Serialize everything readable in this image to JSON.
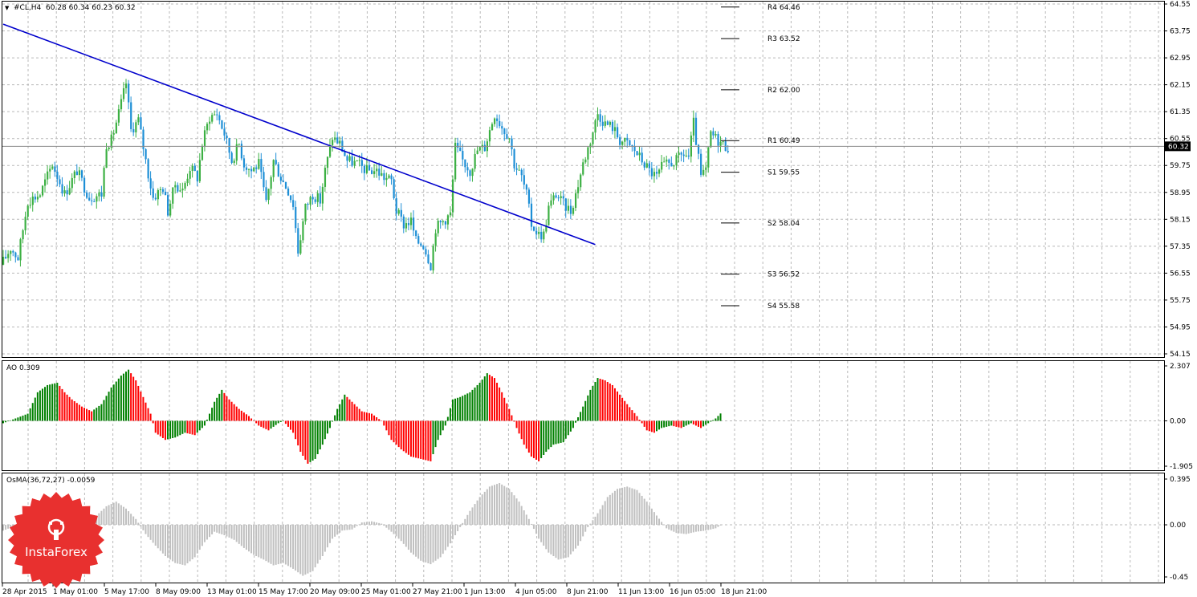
{
  "chart_data": [
    {
      "type": "candlestick",
      "title": "#CL,H4",
      "ohlc_label": "60.28 60.34 60.23 60.32",
      "current_price": 60.32,
      "current_price_label": "60.32",
      "ylim": [
        54.15,
        64.55
      ],
      "y_ticks": [
        "64.55",
        "63.75",
        "62.95",
        "62.15",
        "61.35",
        "60.55",
        "59.75",
        "58.95",
        "58.15",
        "57.35",
        "56.55",
        "55.75",
        "54.95",
        "54.15"
      ],
      "x_ticks": [
        "28 Apr 2015",
        "1 May 01:00",
        "5 May 17:00",
        "8 May 09:00",
        "13 May 01:00",
        "15 May 17:00",
        "20 May 09:00",
        "25 May 01:00",
        "27 May 21:00",
        "1 Jun 13:00",
        "4 Jun 05:00",
        "8 Jun 21:00",
        "11 Jun 13:00",
        "16 Jun 05:00",
        "18 Jun 21:00"
      ],
      "up_color": "#3cb043",
      "down_color": "#1e8fd6",
      "trendline_color": "#0000cc",
      "pivot_levels": [
        {
          "label": "R4 64.46",
          "value": 64.46
        },
        {
          "label": "R3 63.52",
          "value": 63.52
        },
        {
          "label": "R2 62.00",
          "value": 62.0
        },
        {
          "label": "R1 60.49",
          "value": 60.49
        },
        {
          "label": "S1 59.55",
          "value": 59.55
        },
        {
          "label": "S2 58.04",
          "value": 58.04
        },
        {
          "label": "S3 56.52",
          "value": 56.52
        },
        {
          "label": "S4 55.58",
          "value": 55.58
        }
      ],
      "trendline": {
        "from_bar": 0,
        "from_value": 63.95,
        "to_bar": 241,
        "to_value": 57.4
      },
      "close_path": [
        [
          0,
          56.9
        ],
        [
          3,
          57.3
        ],
        [
          6,
          57.0
        ],
        [
          10,
          58.7
        ],
        [
          15,
          58.9
        ],
        [
          20,
          59.8
        ],
        [
          25,
          58.9
        ],
        [
          30,
          59.6
        ],
        [
          35,
          58.8
        ],
        [
          40,
          58.9
        ],
        [
          42,
          60.4
        ],
        [
          44,
          60.5
        ],
        [
          47,
          61.3
        ],
        [
          50,
          62.2
        ],
        [
          52,
          60.8
        ],
        [
          55,
          61.1
        ],
        [
          57,
          60.3
        ],
        [
          59,
          59.5
        ],
        [
          61,
          58.8
        ],
        [
          65,
          59.1
        ],
        [
          67,
          58.4
        ],
        [
          70,
          59.2
        ],
        [
          73,
          59.0
        ],
        [
          76,
          59.7
        ],
        [
          79,
          59.4
        ],
        [
          81,
          60.4
        ],
        [
          84,
          61.2
        ],
        [
          87,
          61.3
        ],
        [
          90,
          60.7
        ],
        [
          93,
          59.9
        ],
        [
          96,
          60.4
        ],
        [
          98,
          59.8
        ],
        [
          101,
          59.6
        ],
        [
          104,
          59.8
        ],
        [
          107,
          58.6
        ],
        [
          110,
          59.9
        ],
        [
          113,
          59.4
        ],
        [
          116,
          59.0
        ],
        [
          118,
          58.6
        ],
        [
          120,
          57.2
        ],
        [
          123,
          58.5
        ],
        [
          126,
          58.9
        ],
        [
          129,
          58.7
        ],
        [
          131,
          59.6
        ],
        [
          134,
          60.6
        ],
        [
          137,
          60.4
        ],
        [
          140,
          59.9
        ],
        [
          144,
          59.8
        ],
        [
          148,
          59.6
        ],
        [
          152,
          59.6
        ],
        [
          155,
          59.4
        ],
        [
          158,
          59.3
        ],
        [
          160,
          58.4
        ],
        [
          163,
          58.0
        ],
        [
          166,
          58.1
        ],
        [
          168,
          57.5
        ],
        [
          171,
          57.4
        ],
        [
          174,
          56.8
        ],
        [
          176,
          57.9
        ],
        [
          179,
          58.1
        ],
        [
          182,
          58.3
        ],
        [
          184,
          60.3
        ],
        [
          187,
          59.9
        ],
        [
          190,
          59.6
        ],
        [
          193,
          60.2
        ],
        [
          196,
          60.3
        ],
        [
          198,
          60.8
        ],
        [
          200,
          61.3
        ],
        [
          203,
          60.9
        ],
        [
          206,
          60.6
        ],
        [
          208,
          59.8
        ],
        [
          211,
          59.4
        ],
        [
          213,
          58.9
        ],
        [
          215,
          58.0
        ],
        [
          218,
          57.7
        ],
        [
          220,
          57.7
        ],
        [
          222,
          58.5
        ],
        [
          225,
          58.9
        ],
        [
          228,
          58.6
        ],
        [
          231,
          58.4
        ],
        [
          233,
          58.9
        ],
        [
          236,
          59.8
        ],
        [
          239,
          60.5
        ],
        [
          242,
          61.3
        ],
        [
          245,
          61.0
        ],
        [
          248,
          60.9
        ],
        [
          251,
          60.5
        ],
        [
          254,
          60.4
        ],
        [
          257,
          60.2
        ],
        [
          260,
          59.9
        ],
        [
          263,
          59.6
        ],
        [
          266,
          59.4
        ],
        [
          268,
          59.7
        ],
        [
          271,
          59.8
        ],
        [
          274,
          59.9
        ],
        [
          277,
          60.1
        ],
        [
          279,
          60.0
        ],
        [
          281,
          61.0
        ],
        [
          284,
          59.4
        ],
        [
          286,
          59.6
        ],
        [
          288,
          60.7
        ],
        [
          291,
          60.5
        ],
        [
          294,
          60.32
        ]
      ],
      "bar_count": 296
    },
    {
      "type": "bar",
      "title": "AO 0.309",
      "ylim": [
        -1.905,
        2.307
      ],
      "y_ticks": [
        "2.307",
        "0.00",
        "-1.905"
      ],
      "up_color": "#008000",
      "down_color": "#ff0000",
      "path": [
        [
          0,
          -0.1
        ],
        [
          5,
          0.1
        ],
        [
          10,
          0.3
        ],
        [
          14,
          1.2
        ],
        [
          18,
          1.5
        ],
        [
          22,
          1.6
        ],
        [
          25,
          1.2
        ],
        [
          28,
          0.9
        ],
        [
          32,
          0.6
        ],
        [
          36,
          0.4
        ],
        [
          40,
          0.7
        ],
        [
          44,
          1.4
        ],
        [
          48,
          1.9
        ],
        [
          51,
          2.15
        ],
        [
          54,
          1.7
        ],
        [
          57,
          1.0
        ],
        [
          60,
          0.3
        ],
        [
          62,
          -0.5
        ],
        [
          66,
          -0.8
        ],
        [
          70,
          -0.7
        ],
        [
          74,
          -0.5
        ],
        [
          78,
          -0.6
        ],
        [
          82,
          -0.2
        ],
        [
          86,
          0.8
        ],
        [
          89,
          1.3
        ],
        [
          92,
          0.9
        ],
        [
          96,
          0.5
        ],
        [
          100,
          0.2
        ],
        [
          104,
          -0.2
        ],
        [
          108,
          -0.4
        ],
        [
          112,
          -0.1
        ],
        [
          114,
          0.0
        ],
        [
          118,
          -0.5
        ],
        [
          121,
          -1.3
        ],
        [
          124,
          -1.8
        ],
        [
          127,
          -1.6
        ],
        [
          130,
          -1.0
        ],
        [
          133,
          -0.3
        ],
        [
          136,
          0.5
        ],
        [
          139,
          1.1
        ],
        [
          142,
          0.8
        ],
        [
          146,
          0.4
        ],
        [
          150,
          0.3
        ],
        [
          154,
          0.0
        ],
        [
          158,
          -0.8
        ],
        [
          162,
          -1.2
        ],
        [
          166,
          -1.5
        ],
        [
          170,
          -1.6
        ],
        [
          174,
          -1.7
        ],
        [
          177,
          -0.8
        ],
        [
          180,
          -0.2
        ],
        [
          183,
          0.9
        ],
        [
          186,
          1.0
        ],
        [
          190,
          1.2
        ],
        [
          194,
          1.6
        ],
        [
          197,
          2.0
        ],
        [
          200,
          1.8
        ],
        [
          203,
          1.2
        ],
        [
          206,
          0.5
        ],
        [
          209,
          -0.3
        ],
        [
          212,
          -1.0
        ],
        [
          215,
          -1.5
        ],
        [
          218,
          -1.7
        ],
        [
          221,
          -1.3
        ],
        [
          224,
          -1.0
        ],
        [
          228,
          -0.9
        ],
        [
          232,
          -0.3
        ],
        [
          236,
          0.6
        ],
        [
          239,
          1.3
        ],
        [
          242,
          1.8
        ],
        [
          245,
          1.7
        ],
        [
          248,
          1.5
        ],
        [
          251,
          1.1
        ],
        [
          254,
          0.7
        ],
        [
          258,
          0.2
        ],
        [
          262,
          -0.4
        ],
        [
          265,
          -0.5
        ],
        [
          268,
          -0.3
        ],
        [
          272,
          -0.2
        ],
        [
          276,
          -0.3
        ],
        [
          280,
          -0.1
        ],
        [
          284,
          -0.3
        ],
        [
          287,
          -0.1
        ],
        [
          290,
          0.1
        ],
        [
          292,
          0.31
        ]
      ],
      "bar_count": 293
    },
    {
      "type": "bar",
      "title": "OsMA(36,72,27) -0.0059",
      "ylim": [
        -0.45,
        0.395
      ],
      "y_ticks": [
        "0.395",
        "0.00",
        "-0.45"
      ],
      "color": "#c0c0c0",
      "path": [
        [
          0,
          -0.05
        ],
        [
          6,
          0.0
        ],
        [
          12,
          0.01
        ],
        [
          20,
          -0.04
        ],
        [
          28,
          -0.02
        ],
        [
          34,
          0.02
        ],
        [
          38,
          0.08
        ],
        [
          42,
          0.16
        ],
        [
          46,
          0.2
        ],
        [
          50,
          0.14
        ],
        [
          54,
          0.05
        ],
        [
          58,
          -0.08
        ],
        [
          62,
          -0.18
        ],
        [
          66,
          -0.27
        ],
        [
          70,
          -0.33
        ],
        [
          74,
          -0.35
        ],
        [
          78,
          -0.28
        ],
        [
          82,
          -0.15
        ],
        [
          86,
          -0.06
        ],
        [
          90,
          -0.09
        ],
        [
          94,
          -0.13
        ],
        [
          98,
          -0.2
        ],
        [
          102,
          -0.26
        ],
        [
          106,
          -0.3
        ],
        [
          110,
          -0.35
        ],
        [
          114,
          -0.33
        ],
        [
          118,
          -0.38
        ],
        [
          122,
          -0.44
        ],
        [
          126,
          -0.4
        ],
        [
          130,
          -0.27
        ],
        [
          134,
          -0.12
        ],
        [
          138,
          -0.05
        ],
        [
          142,
          -0.04
        ],
        [
          146,
          0.02
        ],
        [
          150,
          0.03
        ],
        [
          154,
          0.01
        ],
        [
          158,
          -0.06
        ],
        [
          162,
          -0.14
        ],
        [
          166,
          -0.24
        ],
        [
          170,
          -0.31
        ],
        [
          174,
          -0.34
        ],
        [
          178,
          -0.28
        ],
        [
          182,
          -0.16
        ],
        [
          186,
          -0.02
        ],
        [
          190,
          0.12
        ],
        [
          194,
          0.24
        ],
        [
          198,
          0.33
        ],
        [
          202,
          0.36
        ],
        [
          206,
          0.31
        ],
        [
          210,
          0.2
        ],
        [
          214,
          0.05
        ],
        [
          218,
          -0.12
        ],
        [
          222,
          -0.24
        ],
        [
          226,
          -0.3
        ],
        [
          230,
          -0.28
        ],
        [
          234,
          -0.18
        ],
        [
          238,
          -0.02
        ],
        [
          242,
          0.1
        ],
        [
          246,
          0.24
        ],
        [
          250,
          0.31
        ],
        [
          254,
          0.33
        ],
        [
          258,
          0.3
        ],
        [
          262,
          0.2
        ],
        [
          266,
          0.08
        ],
        [
          270,
          -0.03
        ],
        [
          274,
          -0.07
        ],
        [
          278,
          -0.08
        ],
        [
          282,
          -0.06
        ],
        [
          286,
          -0.05
        ],
        [
          290,
          -0.03
        ],
        [
          292,
          -0.0059
        ]
      ],
      "bar_count": 293
    }
  ],
  "watermark": {
    "text": "InstaForex"
  }
}
